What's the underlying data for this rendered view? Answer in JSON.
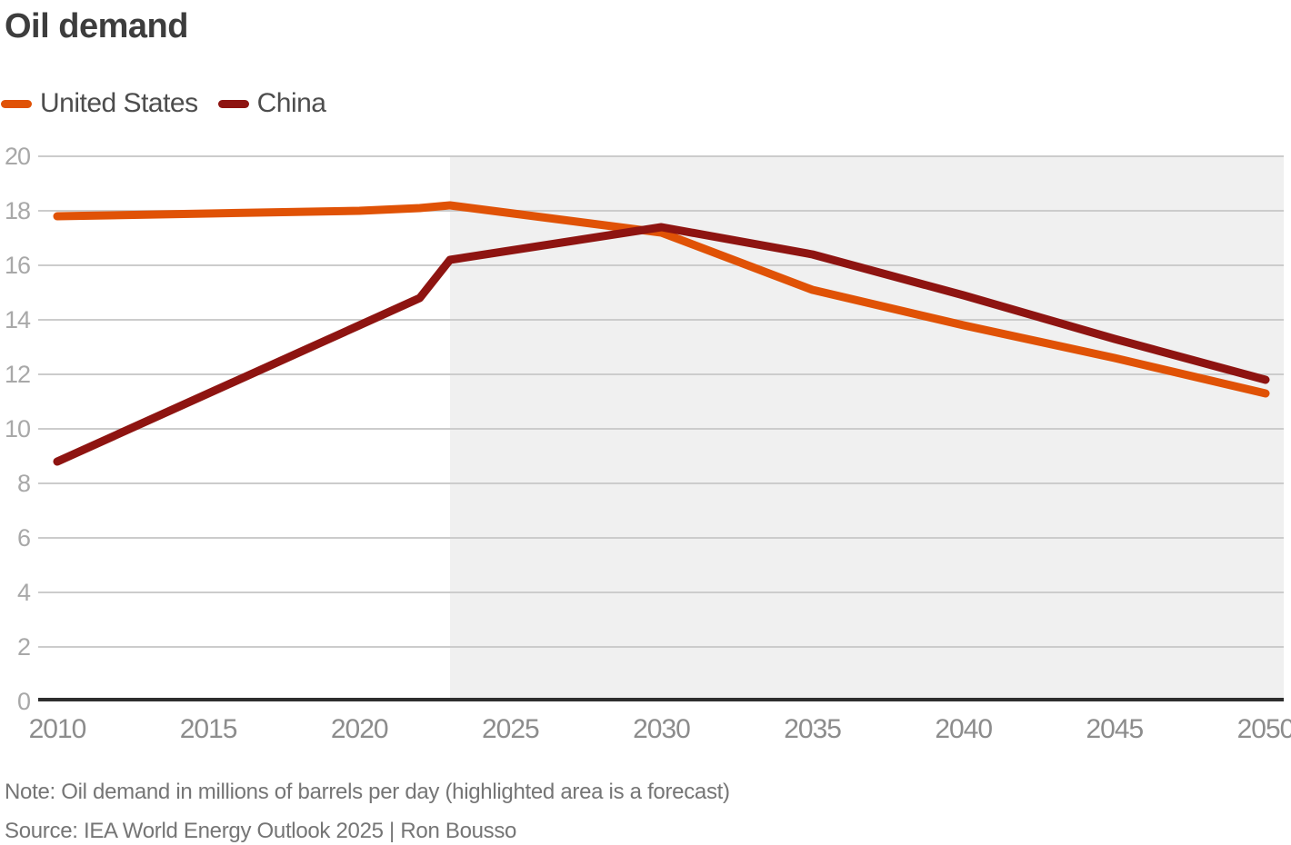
{
  "title": "Oil demand",
  "legend": {
    "items": [
      {
        "label": "United States",
        "color": "#e05206"
      },
      {
        "label": "China",
        "color": "#8e1411"
      }
    ]
  },
  "footer": {
    "note": "Note: Oil demand in millions of barrels per day (highlighted area is a forecast)",
    "source": "Source: IEA World Energy Outlook 2025 | Ron Bousso"
  },
  "chart_data": {
    "type": "line",
    "title": "Oil demand",
    "xlabel": "",
    "ylabel": "Oil demand (millions of barrels per day)",
    "x": [
      2010,
      2015,
      2020,
      2022,
      2023,
      2030,
      2035,
      2040,
      2045,
      2050
    ],
    "series": [
      {
        "name": "United States",
        "color": "#e05206",
        "values": [
          17.8,
          17.9,
          18.0,
          18.1,
          18.2,
          17.2,
          15.1,
          13.8,
          12.6,
          11.3
        ]
      },
      {
        "name": "China",
        "color": "#8e1411",
        "values": [
          8.8,
          11.3,
          13.8,
          14.8,
          16.2,
          17.4,
          16.4,
          14.9,
          13.3,
          11.8
        ]
      }
    ],
    "xlim": [
      2010,
      2050
    ],
    "ylim": [
      0,
      20
    ],
    "x_ticks": [
      2010,
      2015,
      2020,
      2025,
      2030,
      2035,
      2040,
      2045,
      2050
    ],
    "y_ticks": [
      0,
      2,
      4,
      6,
      8,
      10,
      12,
      14,
      16,
      18,
      20
    ],
    "grid": true,
    "legend_position": "top-left",
    "forecast_start_x": 2023,
    "forecast_band_color": "#f0f0f0",
    "grid_color": "#cccccc",
    "axis_color": "#2e2e2e",
    "line_width": 9
  }
}
